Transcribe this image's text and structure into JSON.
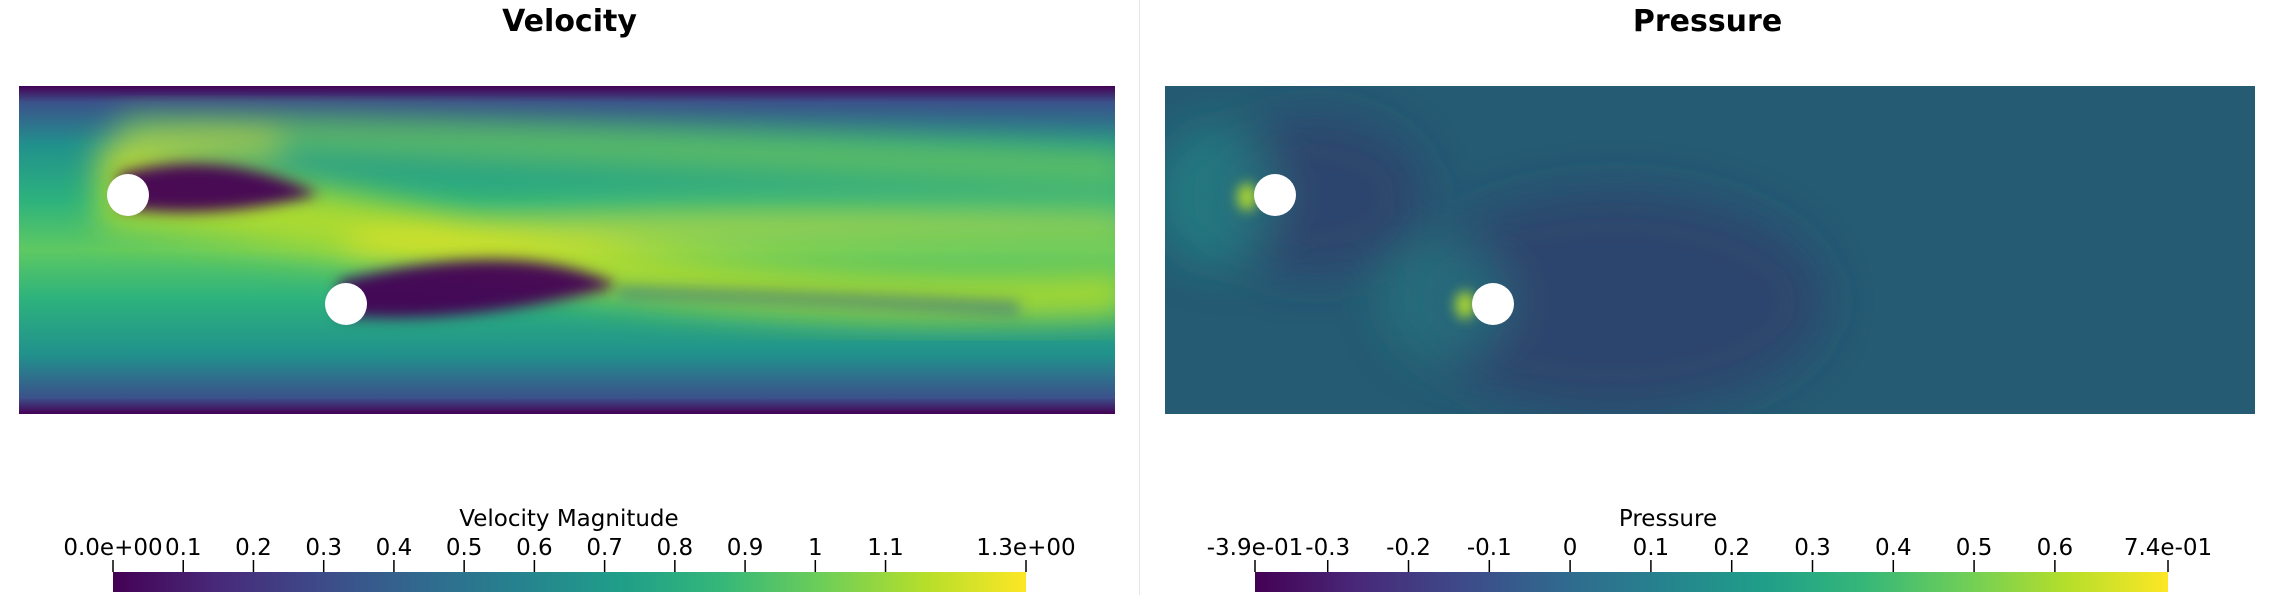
{
  "colors": {
    "viridis": [
      "#440154",
      "#482878",
      "#3e4989",
      "#31688e",
      "#26828e",
      "#1f9e89",
      "#35b779",
      "#6ece58",
      "#b5de2b",
      "#fde725"
    ],
    "pressure_background": "#255b73"
  },
  "chart_data": [
    {
      "type": "heatmap",
      "title": "Velocity",
      "colorbar": {
        "title": "Velocity Magnitude",
        "range": [
          0.0,
          1.3
        ],
        "ticks": [
          {
            "value": 0.0,
            "label": "0.0e+00"
          },
          {
            "value": 0.1,
            "label": "0.1"
          },
          {
            "value": 0.2,
            "label": "0.2"
          },
          {
            "value": 0.3,
            "label": "0.3"
          },
          {
            "value": 0.4,
            "label": "0.4"
          },
          {
            "value": 0.5,
            "label": "0.5"
          },
          {
            "value": 0.6,
            "label": "0.6"
          },
          {
            "value": 0.7,
            "label": "0.7"
          },
          {
            "value": 0.8,
            "label": "0.8"
          },
          {
            "value": 0.9,
            "label": "0.9"
          },
          {
            "value": 1.0,
            "label": "1"
          },
          {
            "value": 1.1,
            "label": "1.1"
          },
          {
            "value": 1.3,
            "label": "1.3e+00"
          }
        ],
        "colormap": "viridis"
      }
    },
    {
      "type": "heatmap",
      "title": "Pressure",
      "colorbar": {
        "title": "Pressure",
        "range": [
          -0.39,
          0.74
        ],
        "ticks": [
          {
            "value": -0.39,
            "label": "-3.9e-01"
          },
          {
            "value": -0.3,
            "label": "-0.3"
          },
          {
            "value": -0.2,
            "label": "-0.2"
          },
          {
            "value": -0.1,
            "label": "-0.1"
          },
          {
            "value": 0.0,
            "label": "0"
          },
          {
            "value": 0.1,
            "label": "0.1"
          },
          {
            "value": 0.2,
            "label": "0.2"
          },
          {
            "value": 0.3,
            "label": "0.3"
          },
          {
            "value": 0.4,
            "label": "0.4"
          },
          {
            "value": 0.5,
            "label": "0.5"
          },
          {
            "value": 0.6,
            "label": "0.6"
          },
          {
            "value": 0.74,
            "label": "7.4e-01"
          }
        ],
        "colormap": "viridis"
      }
    }
  ]
}
